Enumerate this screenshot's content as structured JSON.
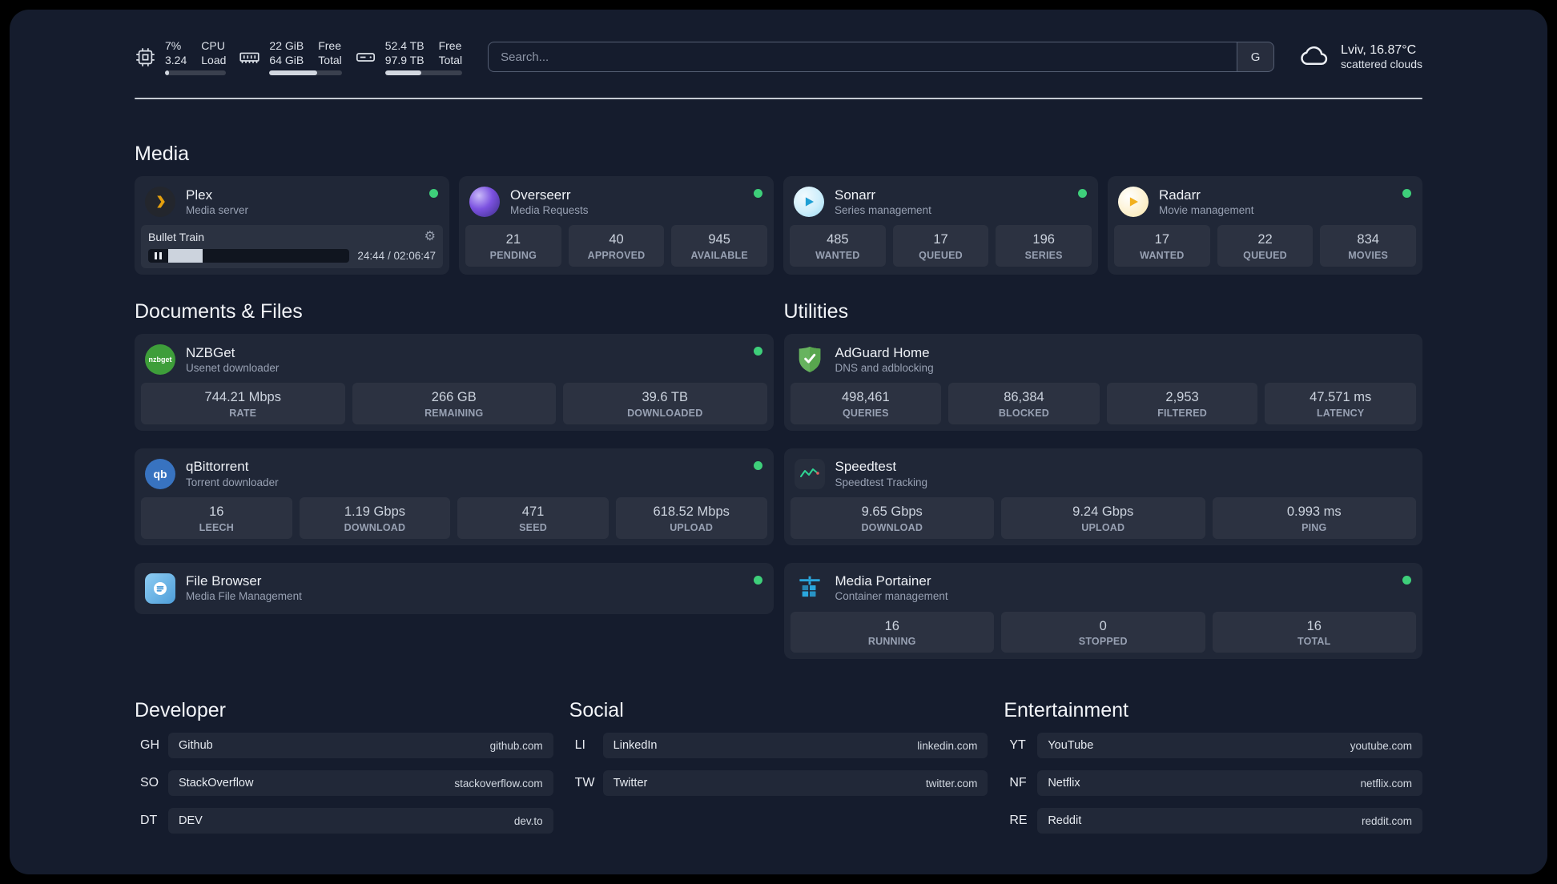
{
  "theme": {
    "panel_bg": "#151c2d",
    "status_green": "#3ecf7a",
    "plex_orange": "#e5a00d",
    "sonarr_blue": "#1e9fd4",
    "radarr_yellow": "#f2b01e",
    "nzbget_green": "#3e9e3a",
    "qbittorrent_blue": "#3873c0",
    "filebrowser_blue": "#4e9ed9",
    "adguard_green": "#67b35f",
    "speedtest_green": "#2fd594",
    "portainer_blue": "#2aa7de"
  },
  "topbar": {
    "cpu": {
      "icon": "cpu-icon",
      "value_top": "7%",
      "label_top": "CPU",
      "value_bottom": "3.24",
      "label_bottom": "Load",
      "bar_percent": 7
    },
    "memory": {
      "icon": "memory-icon",
      "value_top": "22 GiB",
      "label_top": "Free",
      "value_bottom": "64 GiB",
      "label_bottom": "Total",
      "bar_percent": 66
    },
    "disk": {
      "icon": "disk-icon",
      "value_top": "52.4 TB",
      "label_top": "Free",
      "value_bottom": "97.9 TB",
      "label_bottom": "Total",
      "bar_percent": 47
    },
    "search": {
      "placeholder": "Search...",
      "provider_label": "G"
    },
    "weather": {
      "icon": "cloud-icon",
      "location": "Lviv, 16.87°C",
      "condition": "scattered clouds"
    }
  },
  "media": {
    "title": "Media",
    "plex": {
      "name": "Plex",
      "desc": "Media server",
      "now_playing": "Bullet Train",
      "time": "24:44 / 02:06:47",
      "progress_percent": 19
    },
    "overseerr": {
      "name": "Overseerr",
      "desc": "Media Requests",
      "stats": [
        {
          "value": "21",
          "label": "PENDING"
        },
        {
          "value": "40",
          "label": "APPROVED"
        },
        {
          "value": "945",
          "label": "AVAILABLE"
        }
      ]
    },
    "sonarr": {
      "name": "Sonarr",
      "desc": "Series management",
      "stats": [
        {
          "value": "485",
          "label": "WANTED"
        },
        {
          "value": "17",
          "label": "QUEUED"
        },
        {
          "value": "196",
          "label": "SERIES"
        }
      ]
    },
    "radarr": {
      "name": "Radarr",
      "desc": "Movie management",
      "stats": [
        {
          "value": "17",
          "label": "WANTED"
        },
        {
          "value": "22",
          "label": "QUEUED"
        },
        {
          "value": "834",
          "label": "MOVIES"
        }
      ]
    }
  },
  "documents": {
    "title": "Documents & Files",
    "nzbget": {
      "name": "NZBGet",
      "desc": "Usenet downloader",
      "icon_text": "nzbget",
      "stats": [
        {
          "value": "744.21 Mbps",
          "label": "RATE"
        },
        {
          "value": "266 GB",
          "label": "REMAINING"
        },
        {
          "value": "39.6 TB",
          "label": "DOWNLOADED"
        }
      ]
    },
    "qbittorrent": {
      "name": "qBittorrent",
      "desc": "Torrent downloader",
      "icon_text": "qb",
      "stats": [
        {
          "value": "16",
          "label": "LEECH"
        },
        {
          "value": "1.19 Gbps",
          "label": "DOWNLOAD"
        },
        {
          "value": "471",
          "label": "SEED"
        },
        {
          "value": "618.52 Mbps",
          "label": "UPLOAD"
        }
      ]
    },
    "filebrowser": {
      "name": "File Browser",
      "desc": "Media File Management"
    }
  },
  "utilities": {
    "title": "Utilities",
    "adguard": {
      "name": "AdGuard Home",
      "desc": "DNS and adblocking",
      "stats": [
        {
          "value": "498,461",
          "label": "QUERIES"
        },
        {
          "value": "86,384",
          "label": "BLOCKED"
        },
        {
          "value": "2,953",
          "label": "FILTERED"
        },
        {
          "value": "47.571 ms",
          "label": "LATENCY"
        }
      ]
    },
    "speedtest": {
      "name": "Speedtest",
      "desc": "Speedtest Tracking",
      "stats": [
        {
          "value": "9.65 Gbps",
          "label": "DOWNLOAD"
        },
        {
          "value": "9.24 Gbps",
          "label": "UPLOAD"
        },
        {
          "value": "0.993 ms",
          "label": "PING"
        }
      ]
    },
    "portainer": {
      "name": "Media Portainer",
      "desc": "Container management",
      "stats": [
        {
          "value": "16",
          "label": "RUNNING"
        },
        {
          "value": "0",
          "label": "STOPPED"
        },
        {
          "value": "16",
          "label": "TOTAL"
        }
      ]
    }
  },
  "bookmarks": {
    "developer": {
      "title": "Developer",
      "items": [
        {
          "abbr": "GH",
          "name": "Github",
          "url": "github.com"
        },
        {
          "abbr": "SO",
          "name": "StackOverflow",
          "url": "stackoverflow.com"
        },
        {
          "abbr": "DT",
          "name": "DEV",
          "url": "dev.to"
        }
      ]
    },
    "social": {
      "title": "Social",
      "items": [
        {
          "abbr": "LI",
          "name": "LinkedIn",
          "url": "linkedin.com"
        },
        {
          "abbr": "TW",
          "name": "Twitter",
          "url": "twitter.com"
        }
      ]
    },
    "entertainment": {
      "title": "Entertainment",
      "items": [
        {
          "abbr": "YT",
          "name": "YouTube",
          "url": "youtube.com"
        },
        {
          "abbr": "NF",
          "name": "Netflix",
          "url": "netflix.com"
        },
        {
          "abbr": "RE",
          "name": "Reddit",
          "url": "reddit.com"
        }
      ]
    }
  }
}
